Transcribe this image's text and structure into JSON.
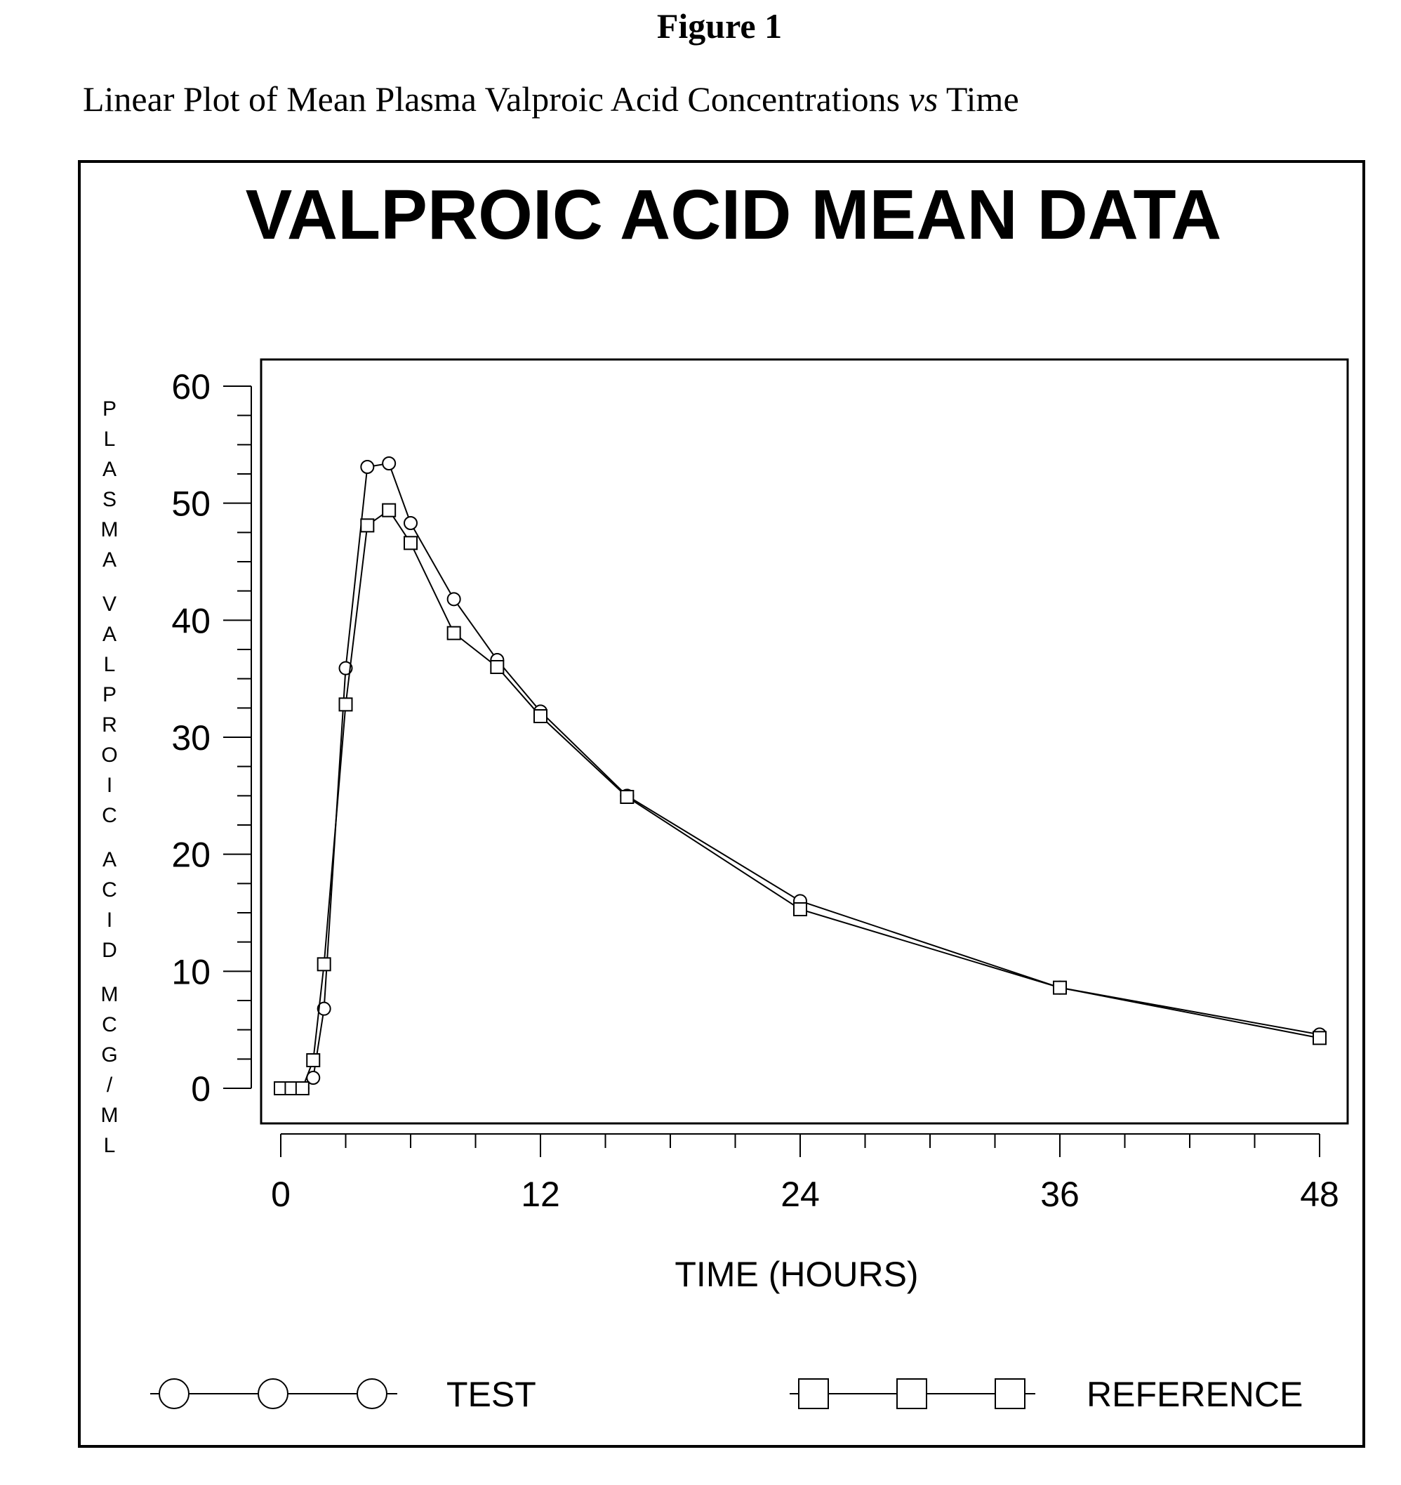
{
  "figure_label": "Figure 1",
  "caption": {
    "before": "Linear Plot of Mean Plasma Valproic Acid Concentrations ",
    "italic": "vs",
    "after": " Time"
  },
  "chart_data": {
    "type": "line",
    "title": "VALPROIC ACID MEAN DATA",
    "xlabel": "TIME (HOURS)",
    "ylabel": "PLASMA VALPROIC ACID MCG/ML",
    "xlim": [
      0,
      48
    ],
    "ylim": [
      0,
      60
    ],
    "x_ticks": [
      0,
      12,
      24,
      36,
      48
    ],
    "y_ticks": [
      0,
      10,
      20,
      30,
      40,
      50,
      60
    ],
    "grid": false,
    "legend_position": "bottom",
    "series": [
      {
        "name": "TEST",
        "marker": "circle",
        "x": [
          0,
          0.5,
          1,
          1.5,
          2,
          3,
          4,
          5,
          6,
          8,
          10,
          12,
          16,
          24,
          36,
          48
        ],
        "values": [
          0,
          0,
          0,
          0.9,
          6.8,
          35.9,
          53.1,
          53.4,
          48.3,
          41.8,
          36.6,
          32.2,
          25.0,
          16.0,
          8.6,
          4.6
        ]
      },
      {
        "name": "REFERENCE",
        "marker": "square",
        "x": [
          0,
          0.5,
          1,
          1.5,
          2,
          3,
          4,
          5,
          6,
          8,
          10,
          12,
          16,
          24,
          36,
          48
        ],
        "values": [
          0,
          0,
          0,
          2.4,
          10.6,
          32.8,
          48.1,
          49.4,
          46.6,
          38.9,
          36.0,
          31.8,
          24.9,
          15.3,
          8.6,
          4.3
        ]
      }
    ]
  }
}
